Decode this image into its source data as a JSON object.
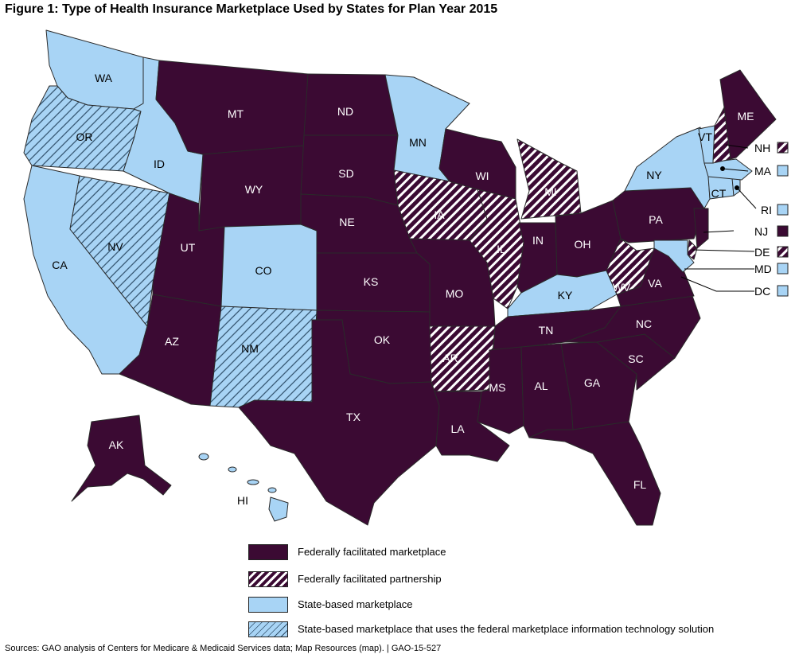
{
  "title": "Figure 1: Type of Health Insurance Marketplace Used by States for Plan Year 2015",
  "source": "Sources: GAO analysis of Centers for Medicare & Medicaid Services data; Map Resources (map).  |  GAO-15-527",
  "colors": {
    "federal": "#3b0a33",
    "state": "#a8d4f5",
    "border": "#2a2a2a"
  },
  "legend": [
    {
      "key": "federal",
      "label": "Federally facilitated marketplace"
    },
    {
      "key": "federal_partnership",
      "label": "Federally facilitated partnership"
    },
    {
      "key": "state",
      "label": "State-based marketplace"
    },
    {
      "key": "state_federal_it",
      "label": "State-based marketplace that uses the federal marketplace information technology solution"
    }
  ],
  "states": {
    "WA": "state",
    "OR": "state_federal_it",
    "CA": "state",
    "NV": "state_federal_it",
    "ID": "state",
    "MT": "federal",
    "WY": "federal",
    "UT": "federal",
    "AZ": "federal",
    "CO": "state",
    "NM": "state_federal_it",
    "ND": "federal",
    "SD": "federal",
    "NE": "federal",
    "KS": "federal",
    "OK": "federal",
    "TX": "federal",
    "MN": "state",
    "IA": "federal_partnership",
    "MO": "federal",
    "AR": "federal_partnership",
    "LA": "federal",
    "WI": "federal",
    "IL": "federal_partnership",
    "MI": "federal_partnership",
    "IN": "federal",
    "OH": "federal",
    "KY": "state",
    "TN": "federal",
    "MS": "federal",
    "AL": "federal",
    "GA": "federal",
    "FL": "federal",
    "SC": "federal",
    "NC": "federal",
    "VA": "federal",
    "WV": "federal_partnership",
    "PA": "federal",
    "NY": "state",
    "VT": "state",
    "NH": "federal_partnership",
    "ME": "federal",
    "MA": "state",
    "RI": "state",
    "CT": "state",
    "NJ": "federal",
    "DE": "federal_partnership",
    "MD": "state",
    "DC": "state",
    "AK": "federal",
    "HI": "state"
  },
  "callouts": [
    "NH",
    "MA",
    "RI",
    "NJ",
    "DE",
    "MD",
    "DC"
  ]
}
